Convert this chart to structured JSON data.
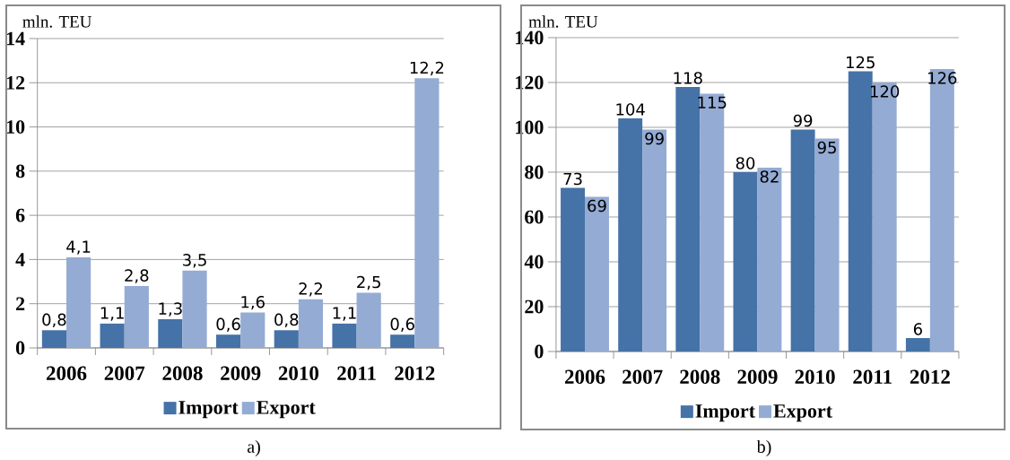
{
  "chart_data": [
    {
      "type": "bar",
      "ylabel": "mln. TEU",
      "categories": [
        "2006",
        "2007",
        "2008",
        "2009",
        "2010",
        "2011",
        "2012"
      ],
      "series": [
        {
          "name": "Import",
          "color": "#4572a7",
          "values": [
            0.8,
            1.1,
            1.3,
            0.6,
            0.8,
            1.1,
            0.6
          ],
          "value_labels": [
            "0,8",
            "1,1",
            "1,3",
            "0,6",
            "0,8",
            "1,1",
            "0,6"
          ]
        },
        {
          "name": "Export",
          "color": "#94abd4",
          "values": [
            4.1,
            2.8,
            3.5,
            1.6,
            2.2,
            2.5,
            12.2
          ],
          "value_labels": [
            "4,1",
            "2,8",
            "3,5",
            "1,6",
            "2,2",
            "2,5",
            "12,2"
          ]
        }
      ],
      "ylim": [
        0,
        14
      ],
      "yticks": [
        0,
        2,
        4,
        6,
        8,
        10,
        12,
        14
      ],
      "grid": "y",
      "legend": "bottom",
      "annotations": [
        "a)"
      ]
    },
    {
      "type": "bar",
      "ylabel": "mln. TEU",
      "categories": [
        "2006",
        "2007",
        "2008",
        "2009",
        "2010",
        "2011",
        "2012"
      ],
      "series": [
        {
          "name": "Import",
          "color": "#4572a7",
          "values": [
            73,
            104,
            118,
            80,
            99,
            125,
            6
          ],
          "value_labels": [
            "73",
            "104",
            "118",
            "80",
            "99",
            "125",
            "6"
          ]
        },
        {
          "name": "Export",
          "color": "#94abd4",
          "values": [
            69,
            99,
            115,
            82,
            95,
            120,
            126
          ],
          "value_labels": [
            "69",
            "99",
            "115",
            "82",
            "95",
            "120",
            "126"
          ]
        }
      ],
      "ylim": [
        0,
        140
      ],
      "yticks": [
        0,
        20,
        40,
        60,
        80,
        100,
        120,
        140
      ],
      "grid": "y",
      "legend": "bottom",
      "annotations": [
        "b)"
      ]
    }
  ]
}
